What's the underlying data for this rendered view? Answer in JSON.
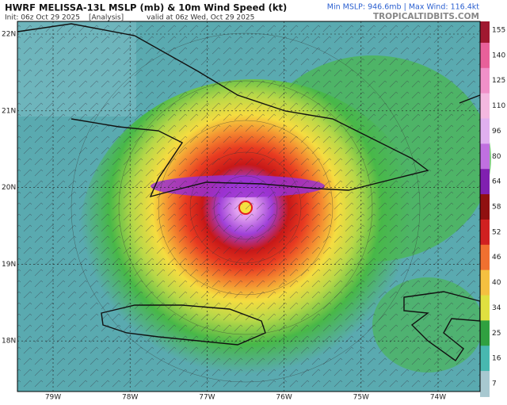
{
  "header": {
    "title": "HWRF MELISSA-13L MSLP (mb) & 10m Wind Speed (kt)",
    "init": "Init: 06z Oct 29 2025",
    "analysis": "[Analysis]",
    "valid": "valid at 06z Wed, Oct 29 2025",
    "stats": "Min MSLP: 946.6mb | Max Wind: 116.4kt",
    "site": "TROPICALTIDBITS.COM"
  },
  "map": {
    "lat_labels": [
      "22N",
      "21N",
      "20N",
      "19N",
      "18N"
    ],
    "lon_labels": [
      "79W",
      "78W",
      "77W",
      "76W",
      "75W",
      "74W"
    ]
  },
  "colorbar": {
    "ticks": [
      "155",
      "140",
      "125",
      "110",
      "96",
      "80",
      "64",
      "58",
      "52",
      "46",
      "40",
      "34",
      "25",
      "16",
      "7"
    ]
  }
}
